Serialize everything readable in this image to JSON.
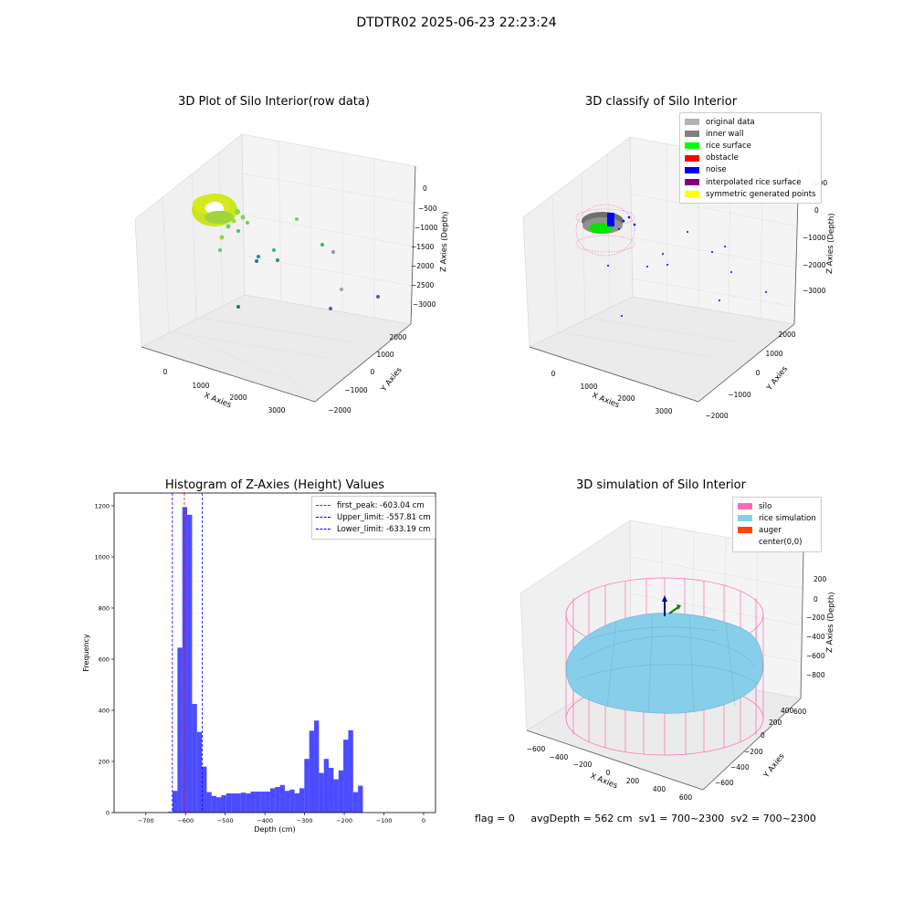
{
  "suptitle": "DTDTR02 2025-06-23 22:23:24",
  "panels": {
    "raw": {
      "title": "3D Plot of Silo Interior(row data)",
      "xlabel": "X Axies",
      "ylabel": "Y Axies",
      "zlabel": "Z Axies (Depth)",
      "xticks": [
        "0",
        "1000",
        "2000",
        "3000"
      ],
      "yticks": [
        "−2000",
        "−1000",
        "0",
        "1000",
        "2000"
      ],
      "zticks": [
        "0",
        "−500",
        "−1000",
        "−1500",
        "−2000",
        "−2500",
        "−3000"
      ]
    },
    "classify": {
      "title": "3D classify of Silo Interior",
      "xlabel": "X Axies",
      "ylabel": "Y Axies",
      "zlabel": "Z Axies (Depth)",
      "xticks": [
        "0",
        "1000",
        "2000",
        "3000"
      ],
      "yticks": [
        "−2000",
        "−1000",
        "0",
        "1000",
        "2000"
      ],
      "zticks": [
        "1000",
        "0",
        "−1000",
        "−2000",
        "−3000"
      ],
      "legend": [
        {
          "label": "original data",
          "color": "#b3b3b3"
        },
        {
          "label": "inner wall",
          "color": "#808080"
        },
        {
          "label": "rice surface",
          "color": "#00ff00"
        },
        {
          "label": "obstacle",
          "color": "#ff0000"
        },
        {
          "label": "noise",
          "color": "#0000ff"
        },
        {
          "label": "interpolated rice surface",
          "color": "#800080"
        },
        {
          "label": "symmetric generated points",
          "color": "#ffff00"
        }
      ]
    },
    "simulation": {
      "title": "3D simulation of Silo Interior",
      "xlabel": "X Axies",
      "ylabel": "Y Axies",
      "zlabel": "Z Axies (Depth)",
      "xticks": [
        "−600",
        "−400",
        "−200",
        "0",
        "200",
        "400",
        "600"
      ],
      "yticks": [
        "−600",
        "−400",
        "−200",
        "0",
        "200",
        "400",
        "600"
      ],
      "zticks": [
        "200",
        "0",
        "−200",
        "−400",
        "−600",
        "−800"
      ],
      "legend": [
        {
          "label": "silo",
          "color": "#ff69b4"
        },
        {
          "label": "rice simulation",
          "color": "#87ceeb"
        },
        {
          "label": "auger",
          "color": "#ff4500"
        },
        {
          "label": "center(0,0)",
          "color": ""
        }
      ]
    }
  },
  "chart_data": {
    "type": "bar",
    "title": "Histogram of Z-Axies (Height) Values",
    "xlabel": "Depth (cm)",
    "ylabel": "Frequency",
    "xlim": [
      -780,
      30
    ],
    "ylim": [
      0,
      1250
    ],
    "xticks": [
      -700,
      -600,
      -500,
      -400,
      -300,
      -200,
      -100,
      0
    ],
    "yticks": [
      0,
      200,
      400,
      600,
      800,
      1000,
      1200
    ],
    "bar_color": "#0000ff",
    "bins": {
      "start": -645,
      "width": 12.3,
      "counts": [
        3,
        85,
        645,
        1195,
        1165,
        425,
        315,
        180,
        80,
        65,
        60,
        68,
        75,
        75,
        75,
        78,
        75,
        82,
        82,
        82,
        82,
        95,
        100,
        108,
        85,
        90,
        75,
        95,
        210,
        320,
        360,
        155,
        210,
        175,
        130,
        165,
        285,
        322,
        80,
        105
      ]
    },
    "lines": [
      {
        "label": "first_peak: -603.04 cm",
        "value": -603.04,
        "color": "#ff0000"
      },
      {
        "label": "Upper_limit: -557.81 cm",
        "value": -557.81,
        "color": "#0000ff"
      },
      {
        "label": "Lower_limit: -633.19 cm",
        "value": -633.19,
        "color": "#0000ff"
      }
    ],
    "legend_position": "top-right",
    "grid": false
  },
  "status": {
    "flag": "flag = 0",
    "avg": "avgDepth = 562 cm",
    "sv1": "sv1 = 700~2300",
    "sv2": "sv2 = 700~2300"
  }
}
